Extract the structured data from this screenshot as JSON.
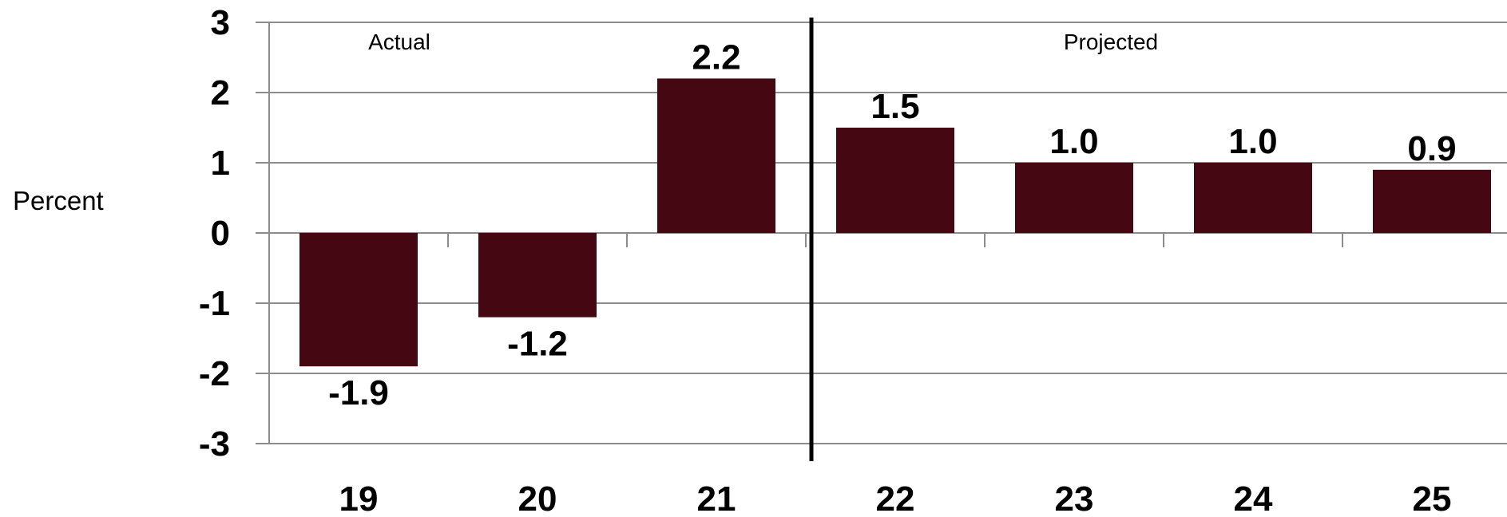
{
  "chart_data": {
    "type": "bar",
    "categories": [
      "19",
      "20",
      "21",
      "22",
      "23",
      "24",
      "25"
    ],
    "values": [
      -1.9,
      -1.2,
      2.2,
      1.5,
      1.0,
      1.0,
      0.9
    ],
    "data_labels": [
      "-1.9",
      "-1.2",
      "2.2",
      "1.5",
      "1.0",
      "1.0",
      "0.9"
    ],
    "y_ticks": [
      "3",
      "2",
      "1",
      "0",
      "-1",
      "-2",
      "-3"
    ],
    "ylabel": "Percent",
    "ylim": [
      -3,
      3
    ],
    "grid": true,
    "annotations": {
      "actual": "Actual",
      "projected": "Projected"
    },
    "divider_between": [
      "21",
      "22"
    ],
    "colors": {
      "bar": "#450812",
      "grid": "#8c8c8c",
      "divider": "#000000"
    }
  }
}
